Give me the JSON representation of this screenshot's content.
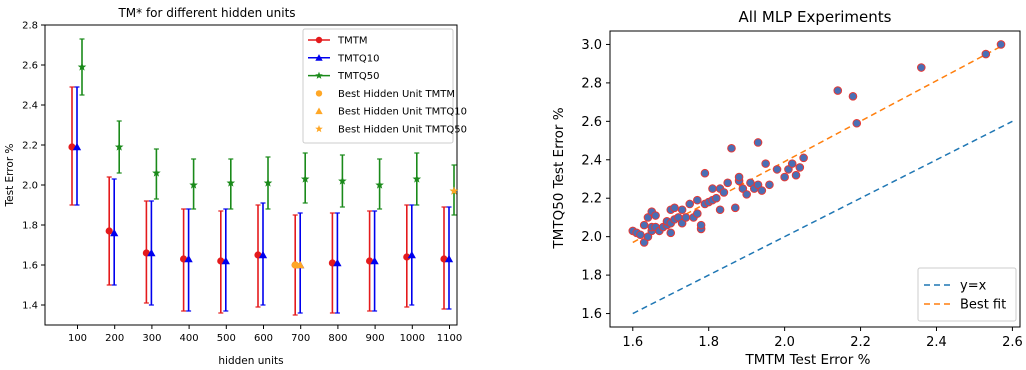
{
  "chart_data": [
    {
      "type": "scatter",
      "title": "TM* for different hidden units",
      "xlabel": "hidden units",
      "ylabel": "Test Error %",
      "x_categories": [
        100,
        200,
        300,
        400,
        500,
        600,
        700,
        800,
        900,
        1000,
        1100
      ],
      "ylim": [
        1.3,
        2.8
      ],
      "yticks": [
        1.4,
        1.6,
        1.8,
        2.0,
        2.2,
        2.4,
        2.6,
        2.8
      ],
      "legend_position": "top-right",
      "series": [
        {
          "name": "TMTM",
          "color": "#e41a1c",
          "marker": "circle",
          "errorbar": true,
          "values": [
            2.19,
            1.77,
            1.66,
            1.63,
            1.62,
            1.65,
            1.6,
            1.61,
            1.62,
            1.64,
            1.63
          ],
          "lower": [
            1.9,
            1.5,
            1.41,
            1.37,
            1.36,
            1.39,
            1.35,
            1.36,
            1.37,
            1.39,
            1.38
          ],
          "upper": [
            2.49,
            2.04,
            1.92,
            1.88,
            1.87,
            1.9,
            1.85,
            1.86,
            1.87,
            1.9,
            1.89
          ]
        },
        {
          "name": "TMTQ10",
          "color": "#0000ee",
          "marker": "triangle",
          "errorbar": true,
          "values": [
            2.19,
            1.76,
            1.66,
            1.63,
            1.62,
            1.65,
            1.6,
            1.61,
            1.62,
            1.65,
            1.63
          ],
          "lower": [
            1.9,
            1.5,
            1.4,
            1.37,
            1.37,
            1.4,
            1.36,
            1.36,
            1.37,
            1.4,
            1.38
          ],
          "upper": [
            2.49,
            2.03,
            1.92,
            1.88,
            1.88,
            1.91,
            1.86,
            1.86,
            1.87,
            1.9,
            1.89
          ]
        },
        {
          "name": "TMTQ50",
          "color": "#1a8a1a",
          "marker": "star",
          "errorbar": true,
          "values": [
            2.59,
            2.19,
            2.06,
            2.0,
            2.01,
            2.01,
            2.03,
            2.02,
            2.0,
            2.03,
            1.97
          ],
          "lower": [
            2.45,
            2.06,
            1.93,
            1.88,
            1.88,
            1.88,
            1.91,
            1.89,
            1.88,
            1.9,
            1.85
          ],
          "upper": [
            2.73,
            2.32,
            2.18,
            2.13,
            2.13,
            2.14,
            2.16,
            2.15,
            2.13,
            2.16,
            2.1
          ]
        },
        {
          "name": "Best Hidden Unit TMTM",
          "color": "#ffa726",
          "marker": "circle",
          "x": [
            700
          ],
          "values": [
            1.6
          ]
        },
        {
          "name": "Best Hidden Unit TMTQ10",
          "color": "#ffa726",
          "marker": "triangle",
          "x": [
            700
          ],
          "values": [
            1.6
          ]
        },
        {
          "name": "Best Hidden Unit TMTQ50",
          "color": "#ffa726",
          "marker": "star",
          "x": [
            1100
          ],
          "values": [
            1.97
          ]
        }
      ]
    },
    {
      "type": "scatter",
      "title": "All MLP Experiments",
      "xlabel": "TMTM Test Error %",
      "ylabel": "TMTQ50 Test Error %",
      "xlim": [
        1.54,
        2.62
      ],
      "ylim": [
        1.53,
        3.07
      ],
      "xticks": [
        1.6,
        1.8,
        2.0,
        2.2,
        2.4,
        2.6
      ],
      "yticks": [
        1.6,
        1.8,
        2.0,
        2.2,
        2.4,
        2.6,
        2.8,
        3.0
      ],
      "legend_position": "bottom-right",
      "points_color": "#4a6fb5",
      "points_edge_color": "#e53935",
      "points": [
        [
          1.6,
          2.03
        ],
        [
          1.61,
          2.02
        ],
        [
          1.62,
          2.01
        ],
        [
          1.63,
          1.97
        ],
        [
          1.63,
          2.06
        ],
        [
          1.64,
          2.0
        ],
        [
          1.64,
          2.1
        ],
        [
          1.65,
          2.03
        ],
        [
          1.65,
          2.05
        ],
        [
          1.65,
          2.13
        ],
        [
          1.66,
          2.05
        ],
        [
          1.66,
          2.11
        ],
        [
          1.67,
          2.03
        ],
        [
          1.68,
          2.05
        ],
        [
          1.69,
          2.06
        ],
        [
          1.69,
          2.08
        ],
        [
          1.7,
          2.02
        ],
        [
          1.7,
          2.07
        ],
        [
          1.7,
          2.14
        ],
        [
          1.71,
          2.09
        ],
        [
          1.71,
          2.15
        ],
        [
          1.72,
          2.1
        ],
        [
          1.73,
          2.14
        ],
        [
          1.73,
          2.07
        ],
        [
          1.74,
          2.1
        ],
        [
          1.75,
          2.17
        ],
        [
          1.76,
          2.1
        ],
        [
          1.77,
          2.19
        ],
        [
          1.77,
          2.12
        ],
        [
          1.78,
          2.04
        ],
        [
          1.78,
          2.06
        ],
        [
          1.79,
          2.17
        ],
        [
          1.79,
          2.33
        ],
        [
          1.8,
          2.18
        ],
        [
          1.81,
          2.19
        ],
        [
          1.81,
          2.25
        ],
        [
          1.82,
          2.2
        ],
        [
          1.83,
          2.14
        ],
        [
          1.83,
          2.25
        ],
        [
          1.84,
          2.23
        ],
        [
          1.85,
          2.28
        ],
        [
          1.86,
          2.46
        ],
        [
          1.87,
          2.15
        ],
        [
          1.88,
          2.29
        ],
        [
          1.88,
          2.31
        ],
        [
          1.89,
          2.25
        ],
        [
          1.9,
          2.22
        ],
        [
          1.91,
          2.28
        ],
        [
          1.92,
          2.25
        ],
        [
          1.93,
          2.27
        ],
        [
          1.93,
          2.49
        ],
        [
          1.94,
          2.24
        ],
        [
          1.95,
          2.38
        ],
        [
          1.96,
          2.27
        ],
        [
          1.98,
          2.35
        ],
        [
          2.0,
          2.31
        ],
        [
          2.01,
          2.35
        ],
        [
          2.02,
          2.38
        ],
        [
          2.03,
          2.32
        ],
        [
          2.04,
          2.36
        ],
        [
          2.05,
          2.41
        ],
        [
          2.14,
          2.76
        ],
        [
          2.18,
          2.73
        ],
        [
          2.19,
          2.59
        ],
        [
          2.36,
          2.88
        ],
        [
          2.53,
          2.95
        ],
        [
          2.57,
          3.0
        ]
      ],
      "series": [
        {
          "name": "y=x",
          "style": "dashed",
          "color": "#1f77b4",
          "x": [
            1.6,
            2.6
          ],
          "values": [
            1.6,
            2.6
          ]
        },
        {
          "name": "Best fit",
          "style": "dashed",
          "color": "#ff7f0e",
          "x": [
            1.6,
            2.57
          ],
          "values": [
            1.97,
            2.99
          ]
        }
      ]
    }
  ]
}
